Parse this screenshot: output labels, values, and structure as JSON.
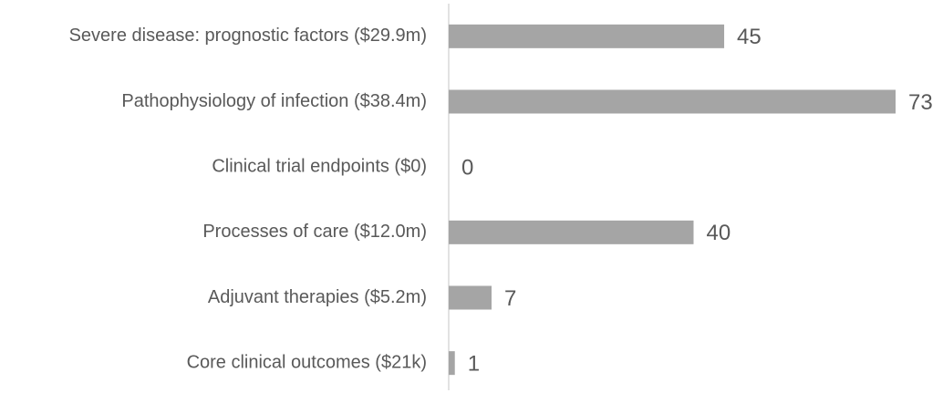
{
  "chart_data": {
    "type": "bar",
    "orientation": "horizontal",
    "categories": [
      "Severe disease: prognostic factors ($29.9m)",
      "Pathophysiology of infection ($38.4m)",
      "Clinical trial endpoints ($0)",
      "Processes of care ($12.0m)",
      "Adjuvant therapies ($5.2m)",
      "Core clinical outcomes ($21k)"
    ],
    "values": [
      45,
      73,
      0,
      40,
      7,
      1
    ],
    "color": "#a5a5a5"
  }
}
